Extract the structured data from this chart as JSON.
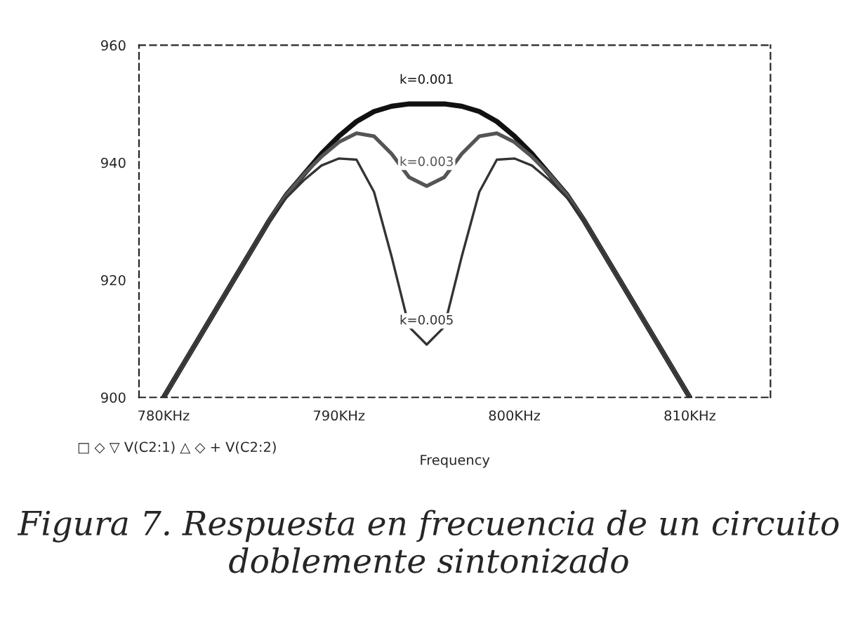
{
  "chart_data": {
    "type": "line",
    "xlabel": "Frequency",
    "xlim": [
      778.6,
      814.6
    ],
    "ylim": [
      900,
      960
    ],
    "xticks": [
      {
        "value": 780,
        "label": "780KHz"
      },
      {
        "value": 790,
        "label": "790KHz"
      },
      {
        "value": 800,
        "label": "800KHz"
      },
      {
        "value": 810,
        "label": "810KHz"
      }
    ],
    "yticks": [
      900,
      920,
      940,
      960
    ],
    "grid": false,
    "line_style": "solid",
    "series": [
      {
        "name": "k=0.001",
        "color": "#111111",
        "x": [
          780,
          782,
          784,
          786,
          787,
          788,
          789,
          790,
          791,
          792,
          793,
          794,
          795,
          796,
          797,
          798,
          799,
          800,
          801,
          802,
          803,
          804,
          806,
          808,
          810
        ],
        "values": [
          900,
          910,
          920,
          930,
          934.5,
          938,
          941.5,
          944.5,
          947,
          948.7,
          949.6,
          950,
          950,
          950,
          949.6,
          948.7,
          947,
          944.5,
          941.5,
          938,
          934.5,
          930,
          920,
          910,
          900
        ]
      },
      {
        "name": "k=0.003",
        "color": "#555555",
        "x": [
          780,
          782,
          784,
          786,
          787,
          788,
          789,
          790,
          791,
          792,
          793,
          794,
          795,
          796,
          797,
          798,
          799,
          800,
          801,
          802,
          803,
          804,
          806,
          808,
          810
        ],
        "values": [
          900,
          910,
          920,
          930,
          934.5,
          938,
          941,
          943.5,
          945,
          944.5,
          941.5,
          937.5,
          936,
          937.5,
          941.5,
          944.5,
          945,
          943.5,
          941,
          938,
          934.5,
          930,
          920,
          910,
          900
        ]
      },
      {
        "name": "k=0.005",
        "color": "#333333",
        "x": [
          780,
          782,
          784,
          786,
          787,
          788,
          789,
          790,
          791,
          792,
          793,
          794,
          795,
          796,
          797,
          798,
          799,
          800,
          801,
          802,
          803,
          804,
          806,
          808,
          810
        ],
        "values": [
          900,
          910,
          920,
          930,
          934,
          937,
          939.5,
          940.7,
          940.5,
          935,
          924,
          912,
          909,
          912,
          924,
          935,
          940.5,
          940.7,
          939.5,
          937,
          934,
          930,
          920,
          910,
          900
        ]
      }
    ],
    "annotations": [
      "□ ◇ ▽ V(C2:1) △ ◇ + V(C2:2)",
      "Figura 7. Respuesta en frecuencia de un circuito doblemente sintonizado"
    ]
  }
}
